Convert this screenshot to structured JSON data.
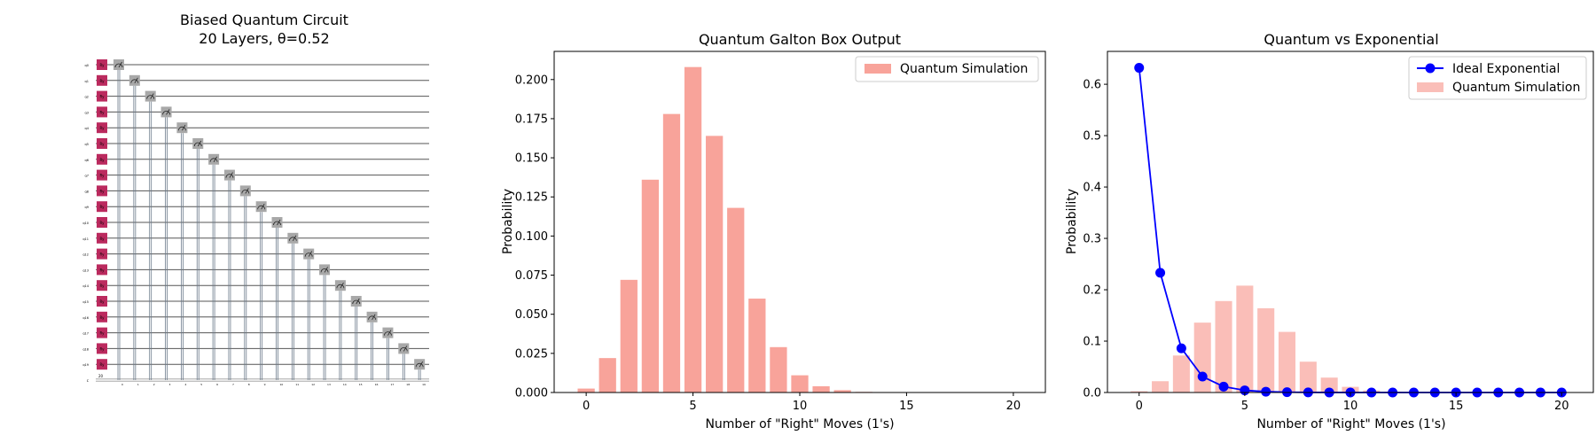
{
  "figure": {
    "circuit_title": "Biased Quantum Circuit",
    "circuit_subtitle": "20 Layers, θ=0.52"
  },
  "circuit": {
    "num_qubits": 20,
    "qubit_labels": [
      "q0",
      "q1",
      "q2",
      "q3",
      "q4",
      "q5",
      "q6",
      "q7",
      "q8",
      "q9",
      "q10",
      "q11",
      "q12",
      "q13",
      "q14",
      "q15",
      "q16",
      "q17",
      "q18",
      "q19"
    ],
    "classical_label": "c",
    "classical_width": "20",
    "gate_label": "Ry",
    "gate_color": "#bb2a5e",
    "measure_color": "#a8a8a8",
    "wire_color": "#6b7a8a"
  },
  "chart_data": [
    {
      "type": "bar",
      "title": "Quantum Galton Box Output",
      "xlabel": "Number of \"Right\" Moves (1's)",
      "ylabel": "Probability",
      "x": [
        0,
        1,
        2,
        3,
        4,
        5,
        6,
        7,
        8,
        9,
        10,
        11,
        12,
        13,
        14,
        15,
        16,
        17,
        18,
        19,
        20
      ],
      "series": [
        {
          "name": "Quantum Simulation",
          "color": "#f8a39a",
          "values": [
            0.0025,
            0.022,
            0.072,
            0.136,
            0.178,
            0.208,
            0.164,
            0.118,
            0.06,
            0.029,
            0.011,
            0.004,
            0.0015,
            0.0004,
            0.0001,
            0,
            0,
            0,
            0,
            0,
            0
          ]
        }
      ],
      "xlim": [
        -1.5,
        21.5
      ],
      "ylim": [
        0,
        0.218
      ],
      "xticks": [
        0,
        5,
        10,
        15,
        20
      ],
      "yticks": [
        0.0,
        0.025,
        0.05,
        0.075,
        0.1,
        0.125,
        0.15,
        0.175,
        0.2
      ],
      "ytick_labels": [
        "0.000",
        "0.025",
        "0.050",
        "0.075",
        "0.100",
        "0.125",
        "0.150",
        "0.175",
        "0.200"
      ],
      "legend": "top-right",
      "grid": false
    },
    {
      "type": "line",
      "title": "Quantum vs Exponential",
      "xlabel": "Number of \"Right\" Moves (1's)",
      "ylabel": "Probability",
      "x": [
        0,
        1,
        2,
        3,
        4,
        5,
        6,
        7,
        8,
        9,
        10,
        11,
        12,
        13,
        14,
        15,
        16,
        17,
        18,
        19,
        20
      ],
      "series": [
        {
          "name": "Ideal Exponential",
          "kind": "line",
          "color": "#0000ff",
          "values": [
            0.632,
            0.233,
            0.086,
            0.031,
            0.0115,
            0.0042,
            0.0016,
            0.0006,
            0.0002,
            0.0001,
            0,
            0,
            0,
            0,
            0,
            0,
            0,
            0,
            0,
            0,
            0
          ]
        },
        {
          "name": "Quantum Simulation",
          "kind": "bar",
          "color": "#f8a39a",
          "values": [
            0.0025,
            0.022,
            0.072,
            0.136,
            0.178,
            0.208,
            0.164,
            0.118,
            0.06,
            0.029,
            0.011,
            0.004,
            0.0015,
            0.0004,
            0.0001,
            0,
            0,
            0,
            0,
            0,
            0
          ]
        }
      ],
      "xlim": [
        -1.5,
        21.5
      ],
      "ylim": [
        0,
        0.664
      ],
      "xticks": [
        0,
        5,
        10,
        15,
        20
      ],
      "yticks": [
        0.0,
        0.1,
        0.2,
        0.3,
        0.4,
        0.5,
        0.6
      ],
      "ytick_labels": [
        "0.0",
        "0.1",
        "0.2",
        "0.3",
        "0.4",
        "0.5",
        "0.6"
      ],
      "legend": "top-right",
      "grid": false
    }
  ]
}
